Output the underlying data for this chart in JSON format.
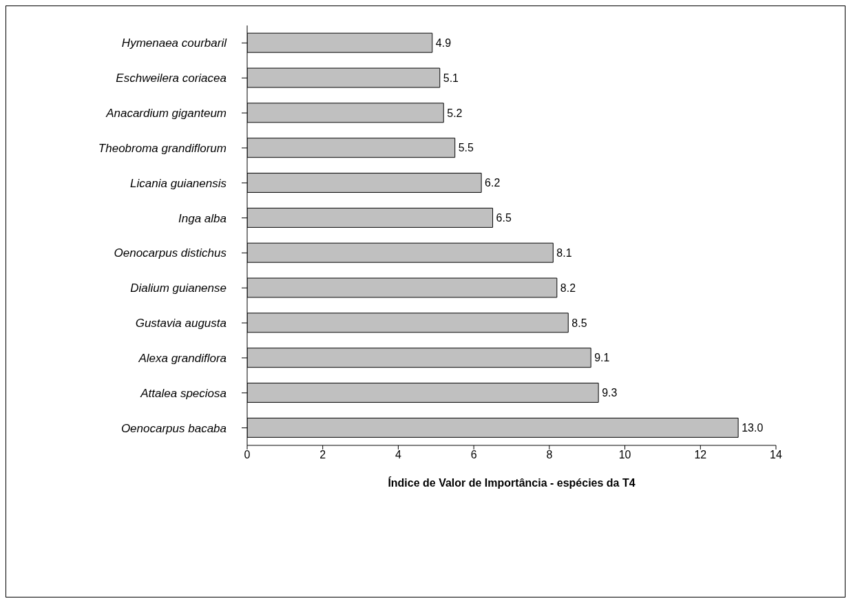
{
  "chart_data": {
    "type": "bar",
    "orientation": "horizontal",
    "xlabel": "Índice de Valor de Importância - espécies da T4",
    "categories": [
      "Hymenaea courbaril",
      "Eschweilera coriacea",
      "Anacardium giganteum",
      "Theobroma grandiflorum",
      "Licania guianensis",
      "Inga alba",
      "Oenocarpus distichus",
      "Dialium guianense",
      "Gustavia augusta",
      "Alexa grandiflora",
      "Attalea speciosa",
      "Oenocarpus bacaba"
    ],
    "values": [
      4.9,
      5.1,
      5.2,
      5.5,
      6.2,
      6.5,
      8.1,
      8.2,
      8.5,
      9.1,
      9.3,
      13.0
    ],
    "value_labels": [
      "4.9",
      "5.1",
      "5.2",
      "5.5",
      "6.2",
      "6.5",
      "8.1",
      "8.2",
      "8.5",
      "9.1",
      "9.3",
      "13.0"
    ],
    "color": "#c0c0c0",
    "xlim": [
      0,
      14
    ],
    "xticks": [
      0,
      2,
      4,
      6,
      8,
      10,
      12,
      14
    ]
  }
}
